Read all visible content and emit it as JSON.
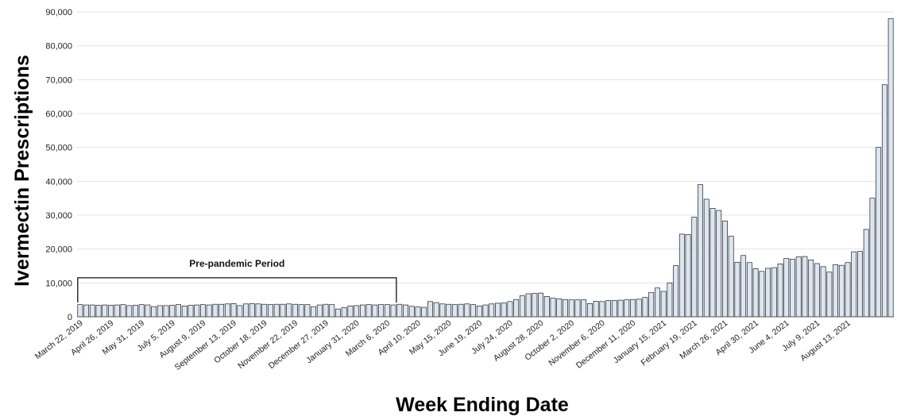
{
  "chart_data": {
    "type": "bar",
    "xlabel": "Week Ending Date",
    "ylabel": "Ivermectin Prescriptions",
    "ylim": [
      0,
      90000
    ],
    "yticks": [
      "0",
      "10,000",
      "20,000",
      "30,000",
      "40,000",
      "50,000",
      "60,000",
      "70,000",
      "80,000",
      "90,000"
    ],
    "grid": true,
    "bar_fill": "#dce6f2",
    "bar_stroke": "#1f1f1f",
    "tick_labels": [
      "March 22, 2019",
      "April 26, 2019",
      "May 31, 2019",
      "July 5, 2019",
      "August 9, 2019",
      "September 13, 2019",
      "October 18, 2019",
      "November 22, 2019",
      "December 27, 2019",
      "January 31, 2020",
      "March 6, 2020",
      "April 10, 2020",
      "May 15, 2020",
      "June 19, 2020",
      "July 24, 2020",
      "August 28, 2020",
      "October 2, 2020",
      "November 6, 2020",
      "December 11, 2020",
      "January 15, 2021",
      "February 19, 2021",
      "March 26, 2021",
      "April 30, 2021",
      "June 4, 2021",
      "July 9, 2021",
      "August 13, 2021"
    ],
    "annotation": {
      "text": "Pre-pandemic Period",
      "start_week": 0,
      "end_week": 51,
      "level": 11500
    },
    "values": [
      3600,
      3500,
      3500,
      3400,
      3500,
      3400,
      3500,
      3600,
      3300,
      3400,
      3600,
      3500,
      3000,
      3300,
      3300,
      3400,
      3600,
      3200,
      3400,
      3500,
      3600,
      3500,
      3700,
      3700,
      3800,
      3900,
      3300,
      3800,
      3900,
      3800,
      3700,
      3600,
      3700,
      3700,
      3800,
      3700,
      3600,
      3600,
      3000,
      3500,
      3700,
      3600,
      2300,
      2700,
      3200,
      3300,
      3500,
      3600,
      3500,
      3600,
      3600,
      3500,
      3700,
      3500,
      3100,
      2900,
      2800,
      4500,
      4200,
      3800,
      3700,
      3600,
      3700,
      3800,
      3600,
      3200,
      3500,
      3800,
      4000,
      4100,
      4500,
      5100,
      6200,
      6800,
      6900,
      7000,
      6000,
      5500,
      5300,
      5100,
      5000,
      5000,
      5000,
      3900,
      4600,
      4500,
      4800,
      4800,
      4900,
      5000,
      5100,
      5200,
      5700,
      7200,
      8500,
      7500,
      10000,
      15100,
      24400,
      24300,
      29400,
      39000,
      34700,
      32000,
      31400,
      28300,
      23800,
      16100,
      18100,
      16000,
      14200,
      13400,
      14300,
      14500,
      15600,
      17200,
      17000,
      17700,
      17800,
      16800,
      15700,
      14800,
      13200,
      15400,
      15200,
      16000,
      19200,
      19300,
      25800,
      35000,
      50000,
      68500,
      88000
    ]
  }
}
